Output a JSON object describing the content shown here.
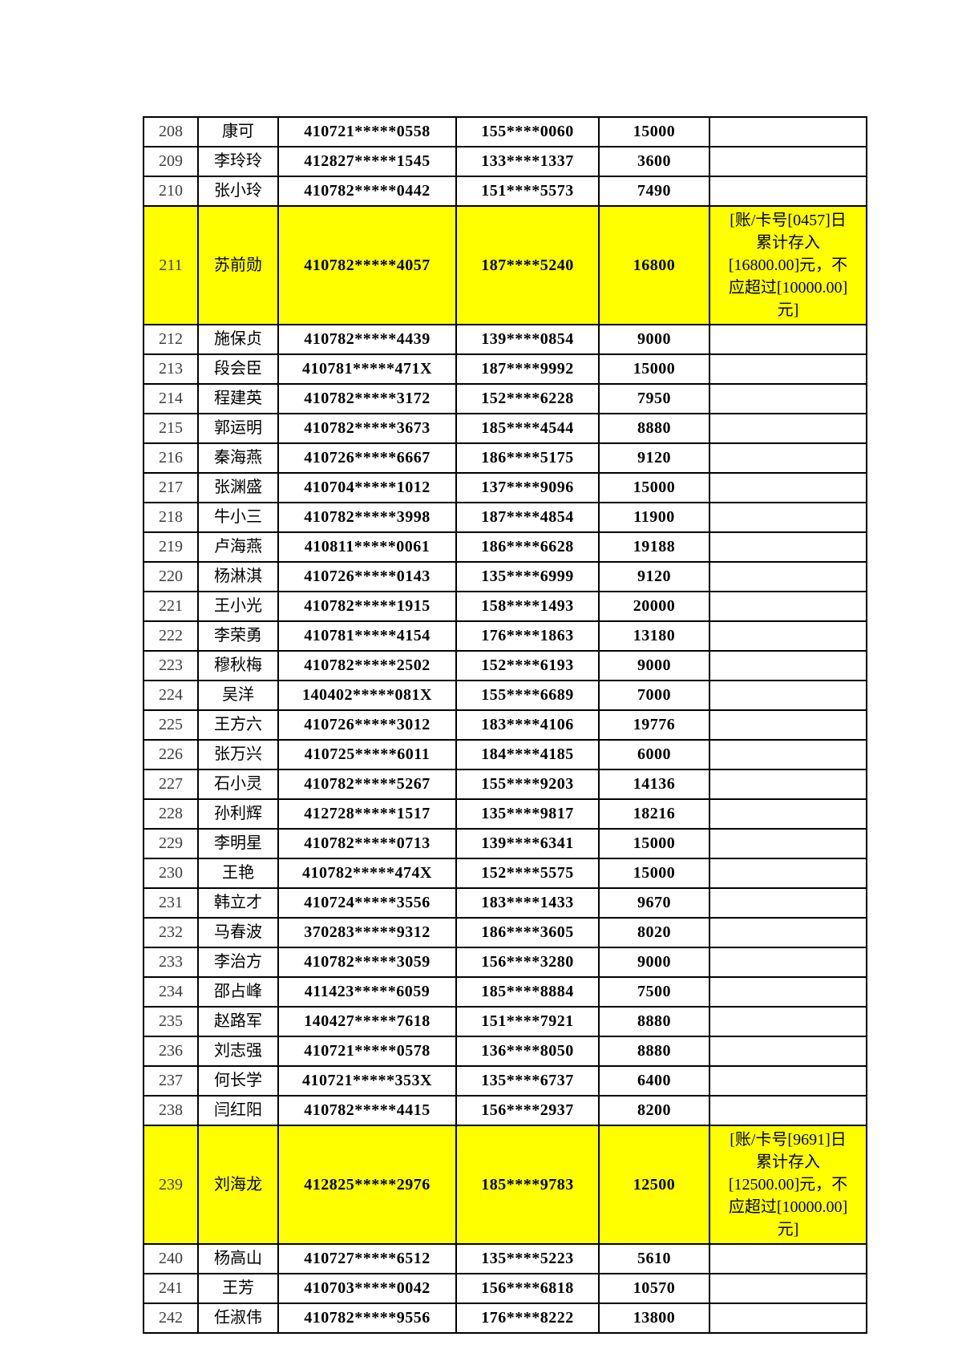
{
  "document": {
    "background": "#ffffff",
    "table": {
      "border_color": "#000000",
      "text_color": "#000000",
      "highlight_color": "#ffff00",
      "column_keys": [
        "index",
        "name",
        "id_number",
        "phone",
        "amount",
        "remark"
      ],
      "rows": [
        {
          "index": "208",
          "name": "康可",
          "id_number": "410721*****0558",
          "phone": "155****0060",
          "amount": "15000",
          "remark": "",
          "highlighted": false
        },
        {
          "index": "209",
          "name": "李玲玲",
          "id_number": "412827*****1545",
          "phone": "133****1337",
          "amount": "3600",
          "remark": "",
          "highlighted": false
        },
        {
          "index": "210",
          "name": "张小玲",
          "id_number": "410782*****0442",
          "phone": "151****5573",
          "amount": "7490",
          "remark": "",
          "highlighted": false
        },
        {
          "index": "211",
          "name": "苏前勋",
          "id_number": "410782*****4057",
          "phone": "187****5240",
          "amount": "16800",
          "remark": "[账/卡号[0457]日累计存入[16800.00]元，不应超过[10000.00]元]",
          "highlighted": true
        },
        {
          "index": "212",
          "name": "施保贞",
          "id_number": "410782*****4439",
          "phone": "139****0854",
          "amount": "9000",
          "remark": "",
          "highlighted": false
        },
        {
          "index": "213",
          "name": "段会臣",
          "id_number": "410781*****471X",
          "phone": "187****9992",
          "amount": "15000",
          "remark": "",
          "highlighted": false
        },
        {
          "index": "214",
          "name": "程建英",
          "id_number": "410782*****3172",
          "phone": "152****6228",
          "amount": "7950",
          "remark": "",
          "highlighted": false
        },
        {
          "index": "215",
          "name": "郭运明",
          "id_number": "410782*****3673",
          "phone": "185****4544",
          "amount": "8880",
          "remark": "",
          "highlighted": false
        },
        {
          "index": "216",
          "name": "秦海燕",
          "id_number": "410726*****6667",
          "phone": "186****5175",
          "amount": "9120",
          "remark": "",
          "highlighted": false
        },
        {
          "index": "217",
          "name": "张渊盛",
          "id_number": "410704*****1012",
          "phone": "137****9096",
          "amount": "15000",
          "remark": "",
          "highlighted": false
        },
        {
          "index": "218",
          "name": "牛小三",
          "id_number": "410782*****3998",
          "phone": "187****4854",
          "amount": "11900",
          "remark": "",
          "highlighted": false
        },
        {
          "index": "219",
          "name": "卢海燕",
          "id_number": "410811*****0061",
          "phone": "186****6628",
          "amount": "19188",
          "remark": "",
          "highlighted": false
        },
        {
          "index": "220",
          "name": "杨淋淇",
          "id_number": "410726*****0143",
          "phone": "135****6999",
          "amount": "9120",
          "remark": "",
          "highlighted": false
        },
        {
          "index": "221",
          "name": "王小光",
          "id_number": "410782*****1915",
          "phone": "158****1493",
          "amount": "20000",
          "remark": "",
          "highlighted": false
        },
        {
          "index": "222",
          "name": "李荣勇",
          "id_number": "410781*****4154",
          "phone": "176****1863",
          "amount": "13180",
          "remark": "",
          "highlighted": false
        },
        {
          "index": "223",
          "name": "穆秋梅",
          "id_number": "410782*****2502",
          "phone": "152****6193",
          "amount": "9000",
          "remark": "",
          "highlighted": false
        },
        {
          "index": "224",
          "name": "吴洋",
          "id_number": "140402*****081X",
          "phone": "155****6689",
          "amount": "7000",
          "remark": "",
          "highlighted": false
        },
        {
          "index": "225",
          "name": "王方六",
          "id_number": "410726*****3012",
          "phone": "183****4106",
          "amount": "19776",
          "remark": "",
          "highlighted": false
        },
        {
          "index": "226",
          "name": "张万兴",
          "id_number": "410725*****6011",
          "phone": "184****4185",
          "amount": "6000",
          "remark": "",
          "highlighted": false
        },
        {
          "index": "227",
          "name": "石小灵",
          "id_number": "410782*****5267",
          "phone": "155****9203",
          "amount": "14136",
          "remark": "",
          "highlighted": false
        },
        {
          "index": "228",
          "name": "孙利辉",
          "id_number": "412728*****1517",
          "phone": "135****9817",
          "amount": "18216",
          "remark": "",
          "highlighted": false
        },
        {
          "index": "229",
          "name": "李明星",
          "id_number": "410782*****0713",
          "phone": "139****6341",
          "amount": "15000",
          "remark": "",
          "highlighted": false
        },
        {
          "index": "230",
          "name": "王艳",
          "id_number": "410782*****474X",
          "phone": "152****5575",
          "amount": "15000",
          "remark": "",
          "highlighted": false
        },
        {
          "index": "231",
          "name": "韩立才",
          "id_number": "410724*****3556",
          "phone": "183****1433",
          "amount": "9670",
          "remark": "",
          "highlighted": false
        },
        {
          "index": "232",
          "name": "马春波",
          "id_number": "370283*****9312",
          "phone": "186****3605",
          "amount": "8020",
          "remark": "",
          "highlighted": false
        },
        {
          "index": "233",
          "name": "李治方",
          "id_number": "410782*****3059",
          "phone": "156****3280",
          "amount": "9000",
          "remark": "",
          "highlighted": false
        },
        {
          "index": "234",
          "name": "邵占峰",
          "id_number": "411423*****6059",
          "phone": "185****8884",
          "amount": "7500",
          "remark": "",
          "highlighted": false
        },
        {
          "index": "235",
          "name": "赵路军",
          "id_number": "140427*****7618",
          "phone": "151****7921",
          "amount": "8880",
          "remark": "",
          "highlighted": false
        },
        {
          "index": "236",
          "name": "刘志强",
          "id_number": "410721*****0578",
          "phone": "136****8050",
          "amount": "8880",
          "remark": "",
          "highlighted": false
        },
        {
          "index": "237",
          "name": "何长学",
          "id_number": "410721*****353X",
          "phone": "135****6737",
          "amount": "6400",
          "remark": "",
          "highlighted": false
        },
        {
          "index": "238",
          "name": "闫红阳",
          "id_number": "410782*****4415",
          "phone": "156****2937",
          "amount": "8200",
          "remark": "",
          "highlighted": false
        },
        {
          "index": "239",
          "name": "刘海龙",
          "id_number": "412825*****2976",
          "phone": "185****9783",
          "amount": "12500",
          "remark": "[账/卡号[9691]日累计存入[12500.00]元，不应超过[10000.00]元]",
          "highlighted": true
        },
        {
          "index": "240",
          "name": "杨高山",
          "id_number": "410727*****6512",
          "phone": "135****5223",
          "amount": "5610",
          "remark": "",
          "highlighted": false
        },
        {
          "index": "241",
          "name": "王芳",
          "id_number": "410703*****0042",
          "phone": "156****6818",
          "amount": "10570",
          "remark": "",
          "highlighted": false
        },
        {
          "index": "242",
          "name": "任淑伟",
          "id_number": "410782*****9556",
          "phone": "176****8222",
          "amount": "13800",
          "remark": "",
          "highlighted": false
        }
      ]
    }
  }
}
